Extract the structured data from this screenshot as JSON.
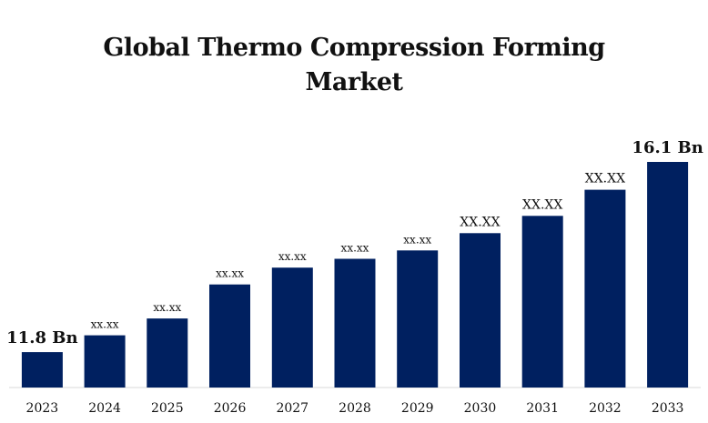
{
  "chart_data": {
    "type": "bar",
    "title_lines": [
      "Global Thermo Compression Forming",
      "Market"
    ],
    "categories": [
      "2023",
      "2024",
      "2025",
      "2026",
      "2027",
      "2028",
      "2029",
      "2030",
      "2031",
      "2032",
      "2033"
    ],
    "values": [
      11.8,
      12.18,
      12.56,
      13.33,
      13.71,
      13.91,
      14.1,
      14.49,
      14.88,
      15.47,
      16.1
    ],
    "data_labels": [
      "11.8 Bn",
      "xx.xx",
      "xx.xx",
      "xx.xx",
      "xx.xx",
      "xx.xx",
      "xx.xx",
      "XX.XX",
      "XX.XX",
      "XX.XX",
      "16.1 Bn"
    ],
    "ylim": [
      11.0,
      16.3
    ],
    "xlabel": "",
    "ylabel": "",
    "grid": false,
    "legend": "none",
    "bar_color": "#002060"
  }
}
